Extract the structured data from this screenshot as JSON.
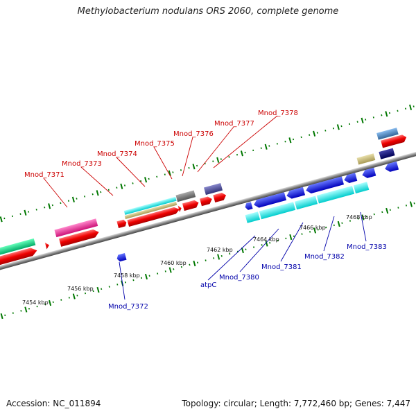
{
  "title": "Methylobacterium nodulans ORS 2060, complete genome",
  "footer": {
    "accession": "Accession: NC_011894",
    "summary": "Topology: circular; Length: 7,772,460 bp; Genes: 7,447"
  },
  "colors": {
    "forward_label": "#cc0000",
    "reverse_label": "#0000aa",
    "axis": "#888888",
    "tick_major": "#007700"
  },
  "axis_ticks": [
    "7454 kbp",
    "7456 kbp",
    "7458 kbp",
    "7460 kbp",
    "7462 kbp",
    "7464 kbp",
    "7466 kbp",
    "7468 kbp"
  ],
  "forward_labels": [
    "Mnod_7371",
    "Mnod_7373",
    "Mnod_7374",
    "Mnod_7375",
    "Mnod_7376",
    "Mnod_7377",
    "Mnod_7378"
  ],
  "reverse_labels": [
    "Mnod_7372",
    "atpC",
    "Mnod_7380",
    "Mnod_7381",
    "Mnod_7382",
    "Mnod_7383"
  ]
}
